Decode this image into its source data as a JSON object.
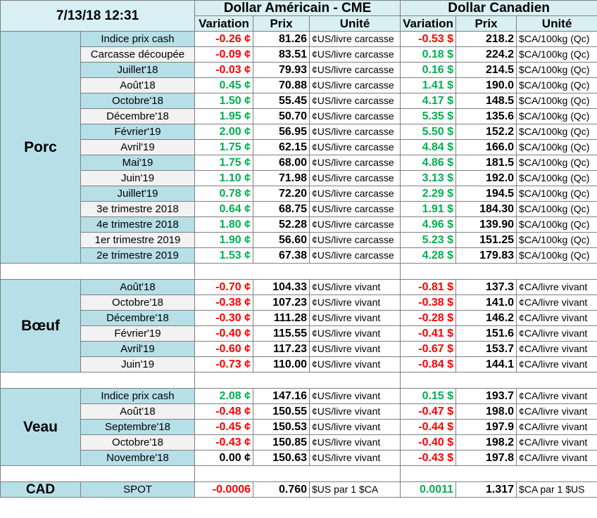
{
  "header": {
    "date": "7/13/18 12:31",
    "usd_title": "Dollar Américain - CME",
    "cad_title": "Dollar Canadien",
    "col_variation": "Variation",
    "col_prix": "Prix",
    "col_unite": "Unité"
  },
  "groups": [
    {
      "name": "Porc",
      "rows": [
        {
          "label": "Indice prix cash",
          "usd_var": "-0.26 ¢",
          "usd_prix": "81.26",
          "usd_unit": "¢US/livre carcasse",
          "cad_var": "-0.53 $",
          "cad_prix": "218.2",
          "cad_unit": "$CA/100kg (Qc)"
        },
        {
          "label": "Carcasse découpée",
          "usd_var": "-0.09 ¢",
          "usd_prix": "83.51",
          "usd_unit": "¢US/livre carcasse",
          "cad_var": "0.18 $",
          "cad_prix": "224.2",
          "cad_unit": "$CA/100kg (Qc)"
        },
        {
          "label": "Juillet'18",
          "usd_var": "-0.03 ¢",
          "usd_prix": "79.93",
          "usd_unit": "¢US/livre carcasse",
          "cad_var": "0.16 $",
          "cad_prix": "214.5",
          "cad_unit": "$CA/100kg (Qc)"
        },
        {
          "label": "Août'18",
          "usd_var": "0.45 ¢",
          "usd_prix": "70.88",
          "usd_unit": "¢US/livre carcasse",
          "cad_var": "1.41 $",
          "cad_prix": "190.0",
          "cad_unit": "$CA/100kg (Qc)"
        },
        {
          "label": "Octobre'18",
          "usd_var": "1.50 ¢",
          "usd_prix": "55.45",
          "usd_unit": "¢US/livre carcasse",
          "cad_var": "4.17 $",
          "cad_prix": "148.5",
          "cad_unit": "$CA/100kg (Qc)"
        },
        {
          "label": "Décembre'18",
          "usd_var": "1.95 ¢",
          "usd_prix": "50.70",
          "usd_unit": "¢US/livre carcasse",
          "cad_var": "5.35 $",
          "cad_prix": "135.6",
          "cad_unit": "$CA/100kg (Qc)"
        },
        {
          "label": "Février'19",
          "usd_var": "2.00 ¢",
          "usd_prix": "56.95",
          "usd_unit": "¢US/livre carcasse",
          "cad_var": "5.50 $",
          "cad_prix": "152.2",
          "cad_unit": "$CA/100kg (Qc)"
        },
        {
          "label": "Avril'19",
          "usd_var": "1.75 ¢",
          "usd_prix": "62.15",
          "usd_unit": "¢US/livre carcasse",
          "cad_var": "4.84 $",
          "cad_prix": "166.0",
          "cad_unit": "$CA/100kg (Qc)"
        },
        {
          "label": "Mai'19",
          "usd_var": "1.75 ¢",
          "usd_prix": "68.00",
          "usd_unit": "¢US/livre carcasse",
          "cad_var": "4.86 $",
          "cad_prix": "181.5",
          "cad_unit": "$CA/100kg (Qc)"
        },
        {
          "label": "Juin'19",
          "usd_var": "1.10 ¢",
          "usd_prix": "71.98",
          "usd_unit": "¢US/livre carcasse",
          "cad_var": "3.13 $",
          "cad_prix": "192.0",
          "cad_unit": "$CA/100kg (Qc)"
        },
        {
          "label": "Juillet'19",
          "usd_var": "0.78 ¢",
          "usd_prix": "72.20",
          "usd_unit": "¢US/livre carcasse",
          "cad_var": "2.29 $",
          "cad_prix": "194.5",
          "cad_unit": "$CA/100kg (Qc)"
        },
        {
          "label": "3e trimestre 2018",
          "usd_var": "0.64 ¢",
          "usd_prix": "68.75",
          "usd_unit": "¢US/livre carcasse",
          "cad_var": "1.91 $",
          "cad_prix": "184.30",
          "cad_unit": "$CA/100kg (Qc)"
        },
        {
          "label": "4e trimestre 2018",
          "usd_var": "1.80 ¢",
          "usd_prix": "52.28",
          "usd_unit": "¢US/livre carcasse",
          "cad_var": "4.96 $",
          "cad_prix": "139.90",
          "cad_unit": "$CA/100kg (Qc)"
        },
        {
          "label": "1er trimestre 2019",
          "usd_var": "1.90 ¢",
          "usd_prix": "56.60",
          "usd_unit": "¢US/livre carcasse",
          "cad_var": "5.23 $",
          "cad_prix": "151.25",
          "cad_unit": "$CA/100kg (Qc)"
        },
        {
          "label": "2e trimestre 2019",
          "usd_var": "1.53 ¢",
          "usd_prix": "67.38",
          "usd_unit": "¢US/livre carcasse",
          "cad_var": "4.28 $",
          "cad_prix": "179.83",
          "cad_unit": "$CA/100kg (Qc)"
        }
      ]
    },
    {
      "name": "Bœuf",
      "rows": [
        {
          "label": "Août'18",
          "usd_var": "-0.70 ¢",
          "usd_prix": "104.33",
          "usd_unit": "¢US/livre vivant",
          "cad_var": "-0.81 $",
          "cad_prix": "137.3",
          "cad_unit": "¢CA/livre vivant"
        },
        {
          "label": "Octobre'18",
          "usd_var": "-0.38 ¢",
          "usd_prix": "107.23",
          "usd_unit": "¢US/livre vivant",
          "cad_var": "-0.38 $",
          "cad_prix": "141.0",
          "cad_unit": "¢CA/livre vivant"
        },
        {
          "label": "Décembre'18",
          "usd_var": "-0.30 ¢",
          "usd_prix": "111.28",
          "usd_unit": "¢US/livre vivant",
          "cad_var": "-0.28 $",
          "cad_prix": "146.2",
          "cad_unit": "¢CA/livre vivant"
        },
        {
          "label": "Février'19",
          "usd_var": "-0.40 ¢",
          "usd_prix": "115.55",
          "usd_unit": "¢US/livre vivant",
          "cad_var": "-0.41 $",
          "cad_prix": "151.6",
          "cad_unit": "¢CA/livre vivant"
        },
        {
          "label": "Avril'19",
          "usd_var": "-0.60 ¢",
          "usd_prix": "117.23",
          "usd_unit": "¢US/livre vivant",
          "cad_var": "-0.67 $",
          "cad_prix": "153.7",
          "cad_unit": "¢CA/livre vivant"
        },
        {
          "label": "Juin'19",
          "usd_var": "-0.73 ¢",
          "usd_prix": "110.00",
          "usd_unit": "¢US/livre vivant",
          "cad_var": "-0.84 $",
          "cad_prix": "144.1",
          "cad_unit": "¢CA/livre vivant"
        }
      ]
    },
    {
      "name": "Veau",
      "rows": [
        {
          "label": "Indice prix cash",
          "usd_var": "2.08 ¢",
          "usd_prix": "147.16",
          "usd_unit": "¢US/livre vivant",
          "cad_var": "0.15 $",
          "cad_prix": "193.7",
          "cad_unit": "¢CA/livre vivant"
        },
        {
          "label": "Août'18",
          "usd_var": "-0.48 ¢",
          "usd_prix": "150.55",
          "usd_unit": "¢US/livre vivant",
          "cad_var": "-0.47 $",
          "cad_prix": "198.0",
          "cad_unit": "¢CA/livre vivant"
        },
        {
          "label": "Septembre'18",
          "usd_var": "-0.45 ¢",
          "usd_prix": "150.53",
          "usd_unit": "¢US/livre vivant",
          "cad_var": "-0.44 $",
          "cad_prix": "197.9",
          "cad_unit": "¢CA/livre vivant"
        },
        {
          "label": "Octobre'18",
          "usd_var": "-0.43 ¢",
          "usd_prix": "150.85",
          "usd_unit": "¢US/livre vivant",
          "cad_var": "-0.40 $",
          "cad_prix": "198.2",
          "cad_unit": "¢CA/livre vivant"
        },
        {
          "label": "Novembre'18",
          "usd_var": "0.00 ¢",
          "usd_prix": "150.63",
          "usd_unit": "¢US/livre vivant",
          "cad_var": "-0.43 $",
          "cad_prix": "197.8",
          "cad_unit": "¢CA/livre vivant"
        }
      ]
    }
  ],
  "cad_row": {
    "name": "CAD",
    "label": "SPOT",
    "usd_var": "-0.0006",
    "usd_prix": "0.760",
    "usd_unit": "$US par 1 $CA",
    "cad_var": "0.0011",
    "cad_prix": "1.317",
    "cad_unit": "$CA par 1 $US"
  },
  "colors": {
    "header_bg": "#d8f0f4",
    "group_bg": "#b7dfe8",
    "alt_row_bg": "#f2f2f2",
    "negative": "#ff0000",
    "positive": "#00b050",
    "neutral": "#000000"
  }
}
